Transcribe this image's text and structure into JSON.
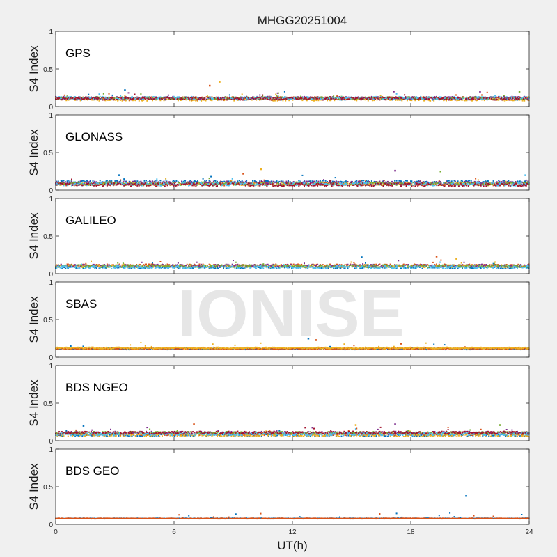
{
  "chart_data": {
    "type": "scatter",
    "title": "MHGG20251004",
    "xlabel": "UT(h)",
    "xlim": [
      0,
      24
    ],
    "xticks": [
      "0",
      "6",
      "12",
      "18",
      "24"
    ],
    "watermark": "IONISE",
    "colors": [
      "#0072BD",
      "#D95319",
      "#EDB120",
      "#7E2F8E",
      "#77AC30",
      "#4DBEEE",
      "#A2142F"
    ],
    "panels": [
      {
        "label": "GPS",
        "ylabel": "S4 Index",
        "ylim": [
          0,
          1
        ],
        "yticks": [
          "0",
          "0.5",
          "1"
        ],
        "baseline": 0.1,
        "spread": 0.035,
        "series_count": 7,
        "peaks": [
          [
            3.5,
            0.22
          ],
          [
            7.8,
            0.28
          ],
          [
            8.3,
            0.33
          ],
          [
            21.5,
            0.2
          ],
          [
            23.5,
            0.2
          ]
        ]
      },
      {
        "label": "GLONASS",
        "ylabel": "S4 Index",
        "ylim": [
          0,
          1
        ],
        "yticks": [
          "0",
          "0.5",
          "1"
        ],
        "baseline": 0.09,
        "spread": 0.04,
        "series_count": 7,
        "peaks": [
          [
            3.2,
            0.2
          ],
          [
            9.5,
            0.22
          ],
          [
            10.4,
            0.28
          ],
          [
            17.2,
            0.26
          ],
          [
            19.5,
            0.25
          ],
          [
            23.8,
            0.2
          ]
        ]
      },
      {
        "label": "GALILEO",
        "ylabel": "S4 Index",
        "ylim": [
          0,
          1
        ],
        "yticks": [
          "0",
          "0.5",
          "1"
        ],
        "baseline": 0.1,
        "spread": 0.035,
        "series_count": 6,
        "peaks": [
          [
            15.5,
            0.22
          ],
          [
            19.3,
            0.23
          ],
          [
            20.3,
            0.2
          ]
        ]
      },
      {
        "label": "SBAS",
        "ylabel": "S4 Index",
        "ylim": [
          0,
          1
        ],
        "yticks": [
          "0",
          "0.5",
          "1"
        ],
        "baseline": 0.12,
        "spread": 0.02,
        "series_count": 3,
        "peaks": [
          [
            12.8,
            0.25
          ],
          [
            13.2,
            0.23
          ]
        ]
      },
      {
        "label": "BDS NGEO",
        "ylabel": "S4 Index",
        "ylim": [
          0,
          1
        ],
        "yticks": [
          "0",
          "0.5",
          "1"
        ],
        "baseline": 0.09,
        "spread": 0.035,
        "series_count": 7,
        "peaks": [
          [
            1.4,
            0.2
          ],
          [
            7.0,
            0.22
          ],
          [
            15.2,
            0.21
          ],
          [
            17.2,
            0.22
          ],
          [
            22.5,
            0.21
          ]
        ]
      },
      {
        "label": "BDS GEO",
        "ylabel": "S4 Index",
        "ylim": [
          0,
          1
        ],
        "yticks": [
          "0",
          "0.5",
          "1"
        ],
        "baseline": 0.08,
        "spread": 0.008,
        "series_count": 2,
        "peaks": [
          [
            20.8,
            0.38
          ]
        ]
      }
    ]
  }
}
